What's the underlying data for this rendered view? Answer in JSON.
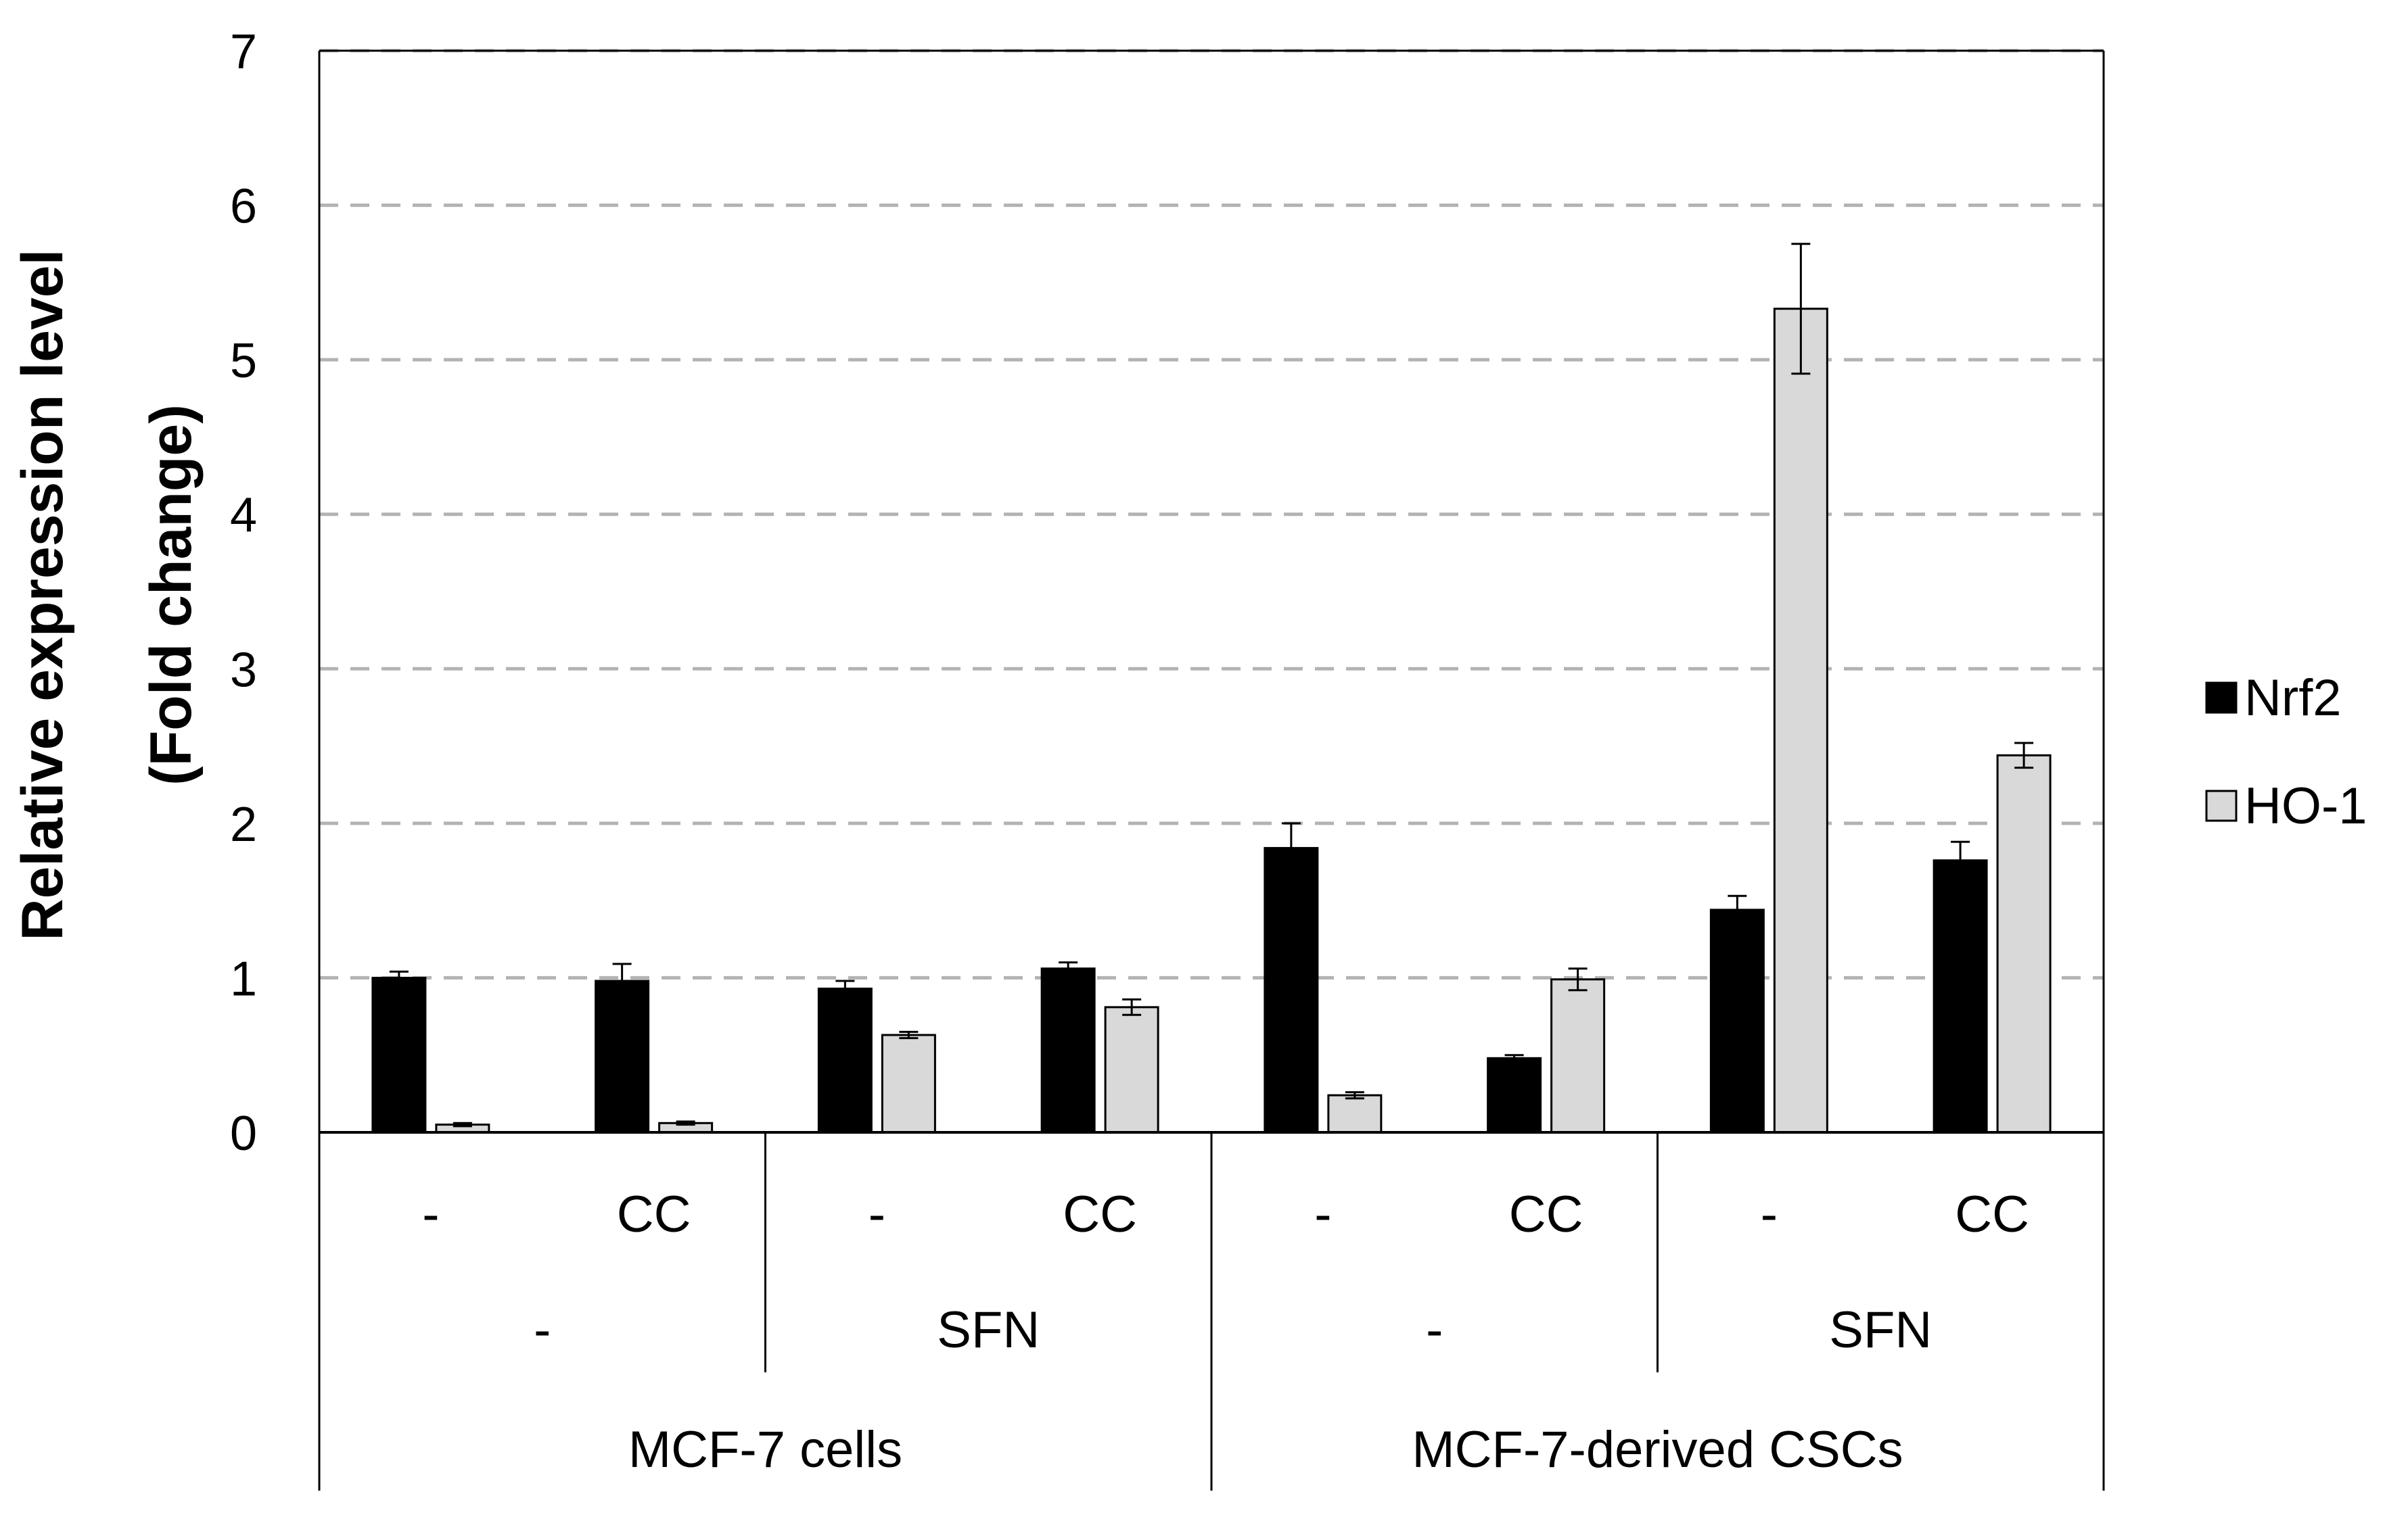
{
  "chart_data": {
    "type": "bar",
    "ylabel_line1": "Relative expression level",
    "ylabel_line2": "(Fold change)",
    "xlabel": "",
    "ylim": [
      0,
      7
    ],
    "yticks": [
      "0",
      "1",
      "2",
      "3",
      "4",
      "5",
      "6",
      "7"
    ],
    "grid": "horizontal dashed",
    "legend_position": "right",
    "categories": [
      "-",
      "CC",
      "-",
      "CC",
      "-",
      "CC",
      "-",
      "CC"
    ],
    "level2": [
      "-",
      "SFN",
      "-",
      "SFN"
    ],
    "level3": [
      "MCF-7 cells",
      "MCF-7-derived CSCs"
    ],
    "series": [
      {
        "name": "Nrf2",
        "color": "#000000",
        "values": [
          1.0,
          0.98,
          0.93,
          1.06,
          1.84,
          0.48,
          1.44,
          1.76
        ],
        "errors": [
          0.04,
          0.11,
          0.05,
          0.04,
          0.16,
          0.02,
          0.09,
          0.12
        ]
      },
      {
        "name": "HO-1",
        "color": "#d9d9d9",
        "values": [
          0.05,
          0.06,
          0.63,
          0.81,
          0.24,
          0.99,
          5.33,
          2.44
        ],
        "errors": [
          0.01,
          0.01,
          0.02,
          0.05,
          0.02,
          0.07,
          0.42,
          0.08
        ]
      }
    ]
  }
}
